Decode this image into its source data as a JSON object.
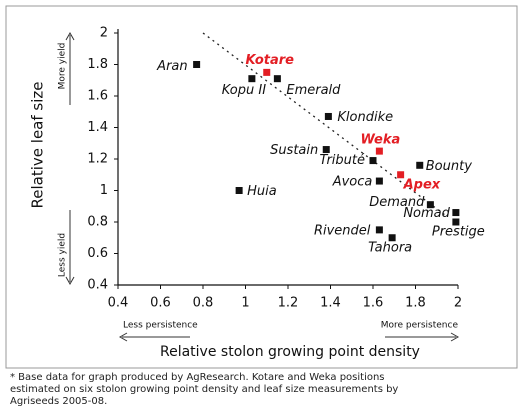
{
  "chart_data": {
    "type": "scatter",
    "xlabel": "Relative stolon growing point density",
    "ylabel": "Relative leaf size",
    "categories": [
      "Aran",
      "Kotare",
      "Kopu II",
      "Emerald",
      "Klondike",
      "Sustain",
      "Weka",
      "Tributé",
      "Bounty",
      "Avoca",
      "Apex",
      "Huia",
      "Demand",
      "Nomad",
      "Prestige",
      "Rivendel",
      "Tahora"
    ],
    "x": [
      0.77,
      1.1,
      1.03,
      1.15,
      1.39,
      1.38,
      1.63,
      1.6,
      1.82,
      1.63,
      1.73,
      0.97,
      1.87,
      1.99,
      1.99,
      1.63,
      1.69
    ],
    "values": [
      1.8,
      1.75,
      1.71,
      1.71,
      1.47,
      1.26,
      1.25,
      1.19,
      1.16,
      1.06,
      1.1,
      1.0,
      0.91,
      0.86,
      0.8,
      0.75,
      0.7
    ],
    "colors": [
      "#111111",
      "#e31e24",
      "#111111",
      "#111111",
      "#111111",
      "#111111",
      "#e31e24",
      "#111111",
      "#111111",
      "#111111",
      "#e31e24",
      "#111111",
      "#111111",
      "#111111",
      "#111111",
      "#111111",
      "#111111"
    ],
    "xlim": [
      0.4,
      2
    ],
    "xticks": [
      0.4,
      0.6,
      0.8,
      1,
      1.2,
      1.4,
      1.6,
      1.8,
      2
    ],
    "ylim": [
      0.4,
      2
    ],
    "yticks": [
      0.4,
      0.6,
      0.8,
      1,
      1.2,
      1.4,
      1.6,
      1.8,
      2
    ],
    "annotations": [
      "More yield",
      "Less yield",
      "Less persistence",
      "More persistence"
    ],
    "footnote": [
      "* Base data for graph produced by AgResearch. Kotare and Weka positions",
      "estimated on six stolon growing point  density and leaf size measurements by",
      "Agriseeds 2005-08."
    ]
  }
}
